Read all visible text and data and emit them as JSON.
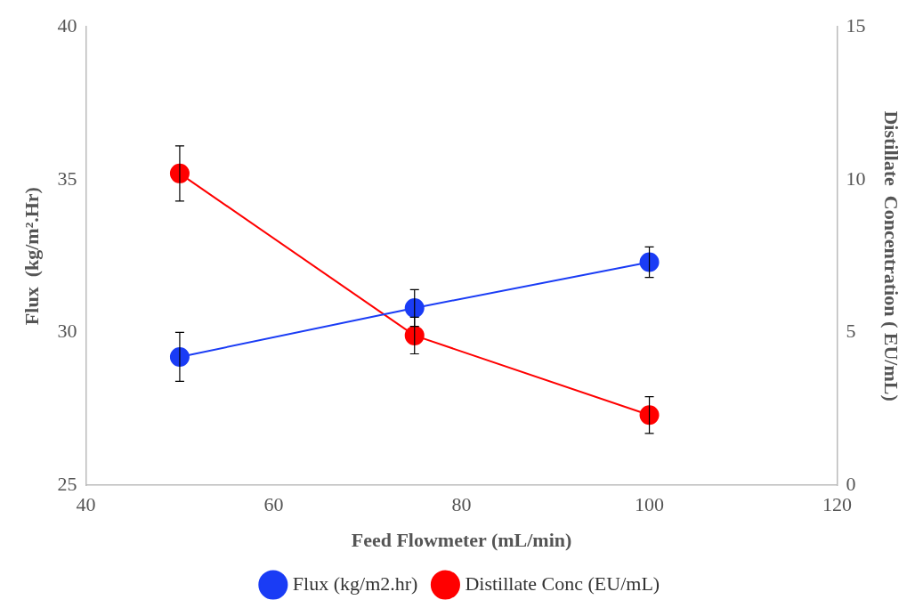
{
  "chart_data": {
    "type": "line",
    "xlabel": "Feed Flowmeter (mL/min)",
    "ylabel": "Flux  (kg/m².Hr)",
    "y2label": "Distillate  Concentration ( EU/mL)",
    "x": [
      50,
      75,
      100
    ],
    "series": [
      {
        "name": "Flux (kg/m2.hr)",
        "color": "#1a3cf5",
        "values": [
          29.2,
          30.8,
          32.3
        ],
        "errors": [
          0.8,
          0.6,
          0.5
        ]
      },
      {
        "name": "Distillate Conc (EU/mL)",
        "color": "#ff0000",
        "values": [
          10.2,
          4.9,
          2.3
        ],
        "errors": [
          0.9,
          0.6,
          0.6
        ],
        "axis": "y2"
      }
    ],
    "xlim": [
      40,
      120
    ],
    "xticks": [
      40,
      60,
      80,
      100,
      120
    ],
    "ylim": [
      25,
      40
    ],
    "yticks": [
      25,
      30,
      35,
      40
    ],
    "y2lim": [
      0,
      15
    ],
    "y2ticks": [
      0,
      5,
      10,
      15
    ],
    "legend": "bottom",
    "marker": "circle",
    "line_style": "solid",
    "grid": false
  }
}
